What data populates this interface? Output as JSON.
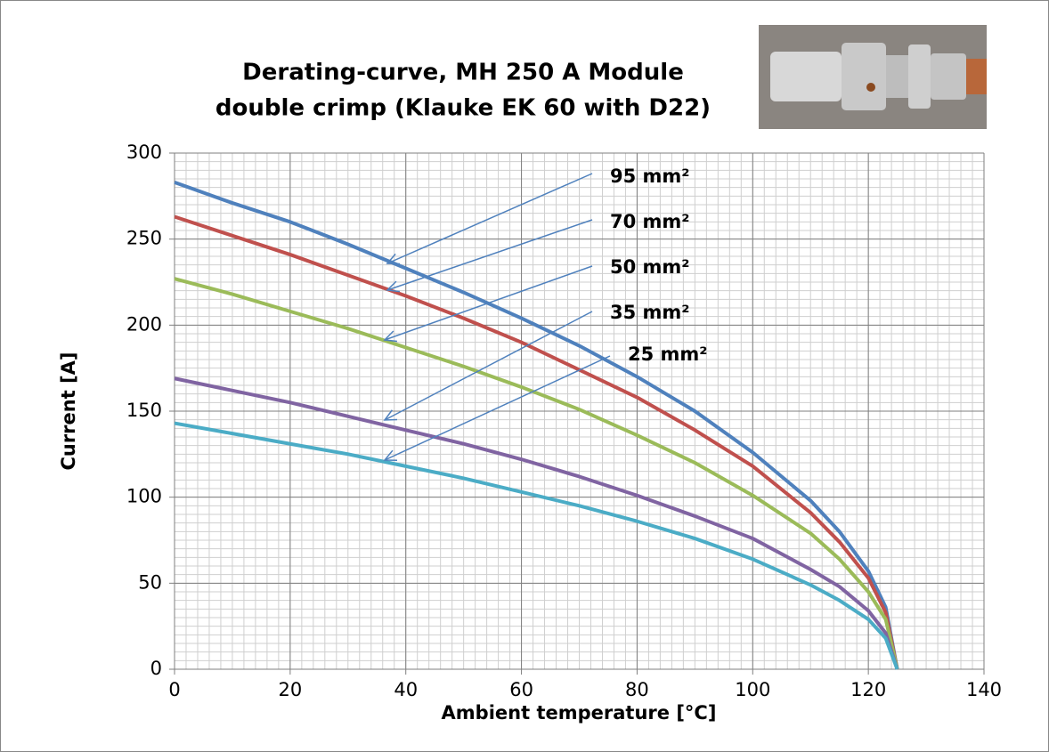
{
  "chart_data": {
    "type": "line",
    "title": [
      "Derating-curve, MH 250 A Module",
      "double crimp (Klauke EK 60 with D22)"
    ],
    "x_label": "Ambient temperature [°C]",
    "y_label": "Current [A]",
    "x": [
      0,
      10,
      20,
      30,
      40,
      50,
      60,
      70,
      80,
      90,
      100,
      110,
      115,
      120,
      123,
      125
    ],
    "series": [
      {
        "name": "95 mm²",
        "color": "#4f81bd",
        "values": [
          283,
          271,
          260,
          247,
          233,
          219,
          204,
          188,
          170,
          150,
          126,
          98,
          80,
          57,
          36,
          0
        ]
      },
      {
        "name": "70 mm²",
        "color": "#c0504d",
        "values": [
          263,
          252,
          241,
          229,
          217,
          204,
          190,
          174,
          158,
          139,
          118,
          91,
          74,
          53,
          33,
          0
        ]
      },
      {
        "name": "50 mm²",
        "color": "#9bbb59",
        "values": [
          227,
          218,
          208,
          198,
          187,
          176,
          164,
          151,
          136,
          120,
          101,
          79,
          64,
          45,
          29,
          0
        ]
      },
      {
        "name": "35 mm²",
        "color": "#8064a2",
        "values": [
          169,
          162,
          155,
          147,
          139,
          131,
          122,
          112,
          101,
          89,
          76,
          58,
          48,
          34,
          21,
          0
        ]
      },
      {
        "name": "25 mm²",
        "color": "#4bacc6",
        "values": [
          143,
          137,
          131,
          125,
          118,
          111,
          103,
          95,
          86,
          76,
          64,
          49,
          40,
          29,
          18,
          0
        ]
      }
    ],
    "xlim": [
      0,
      140
    ],
    "xticks": [
      0,
      20,
      40,
      60,
      80,
      100,
      120,
      140
    ],
    "ylim": [
      0,
      300
    ],
    "yticks": [
      0,
      50,
      100,
      150,
      200,
      250,
      300
    ],
    "grid": true,
    "minor_grid": {
      "x": 2,
      "y": 5
    }
  }
}
